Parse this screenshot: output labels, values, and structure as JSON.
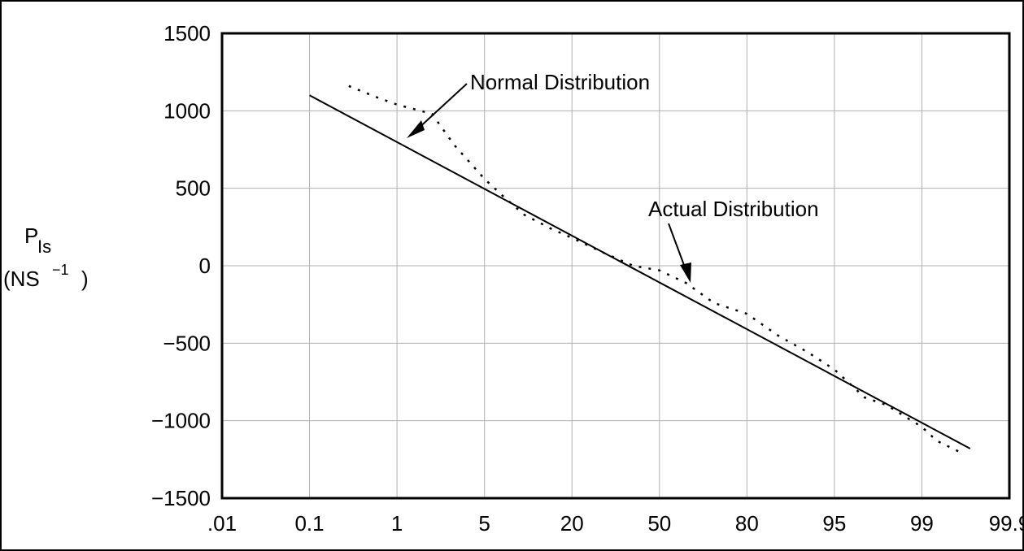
{
  "chart_data": {
    "type": "line",
    "title": "",
    "xlabel": "",
    "ylabel": {
      "symbol": "P",
      "subscript": "Is",
      "unit_prefix": "(NS",
      "unit_exponent": "−1",
      "unit_suffix": ")"
    },
    "x_scale": "normal-probability",
    "x_ticks": [
      ".01",
      "0.1",
      "1",
      "5",
      "20",
      "50",
      "80",
      "95",
      "99",
      "99.9"
    ],
    "y_ticks": [
      "1500",
      "1000",
      "500",
      "0",
      "−500",
      "−1000",
      "−1500"
    ],
    "ylim": [
      -1500,
      1500
    ],
    "grid": true,
    "series": [
      {
        "name": "Normal Distribution",
        "style": "solid",
        "x": [
          0.1,
          99.7
        ],
        "y": [
          1100,
          -1180
        ]
      },
      {
        "name": "Actual Distribution",
        "style": "dotted",
        "x": [
          0.3,
          0.6,
          1.0,
          2.0,
          3.0,
          5.0,
          7.0,
          10.0,
          15.0,
          20.0,
          30.0,
          40.0,
          50.0,
          60.0,
          70.0,
          80.0,
          87.0,
          92.0,
          95.0,
          96.0,
          97.0,
          98.0,
          99.0,
          99.3,
          99.6
        ],
        "y": [
          1160,
          1090,
          1040,
          980,
          780,
          560,
          450,
          330,
          240,
          180,
          80,
          0,
          -30,
          -110,
          -240,
          -310,
          -450,
          -560,
          -670,
          -750,
          -850,
          -900,
          -1040,
          -1130,
          -1200
        ]
      }
    ],
    "annotations": [
      {
        "text": "Normal Distribution",
        "points_to": "Normal Distribution"
      },
      {
        "text": "Actual Distribution",
        "points_to": "Actual Distribution"
      }
    ],
    "colors": {
      "line": "#000000",
      "grid": "#b0b0b0",
      "axes": "#000000"
    }
  }
}
